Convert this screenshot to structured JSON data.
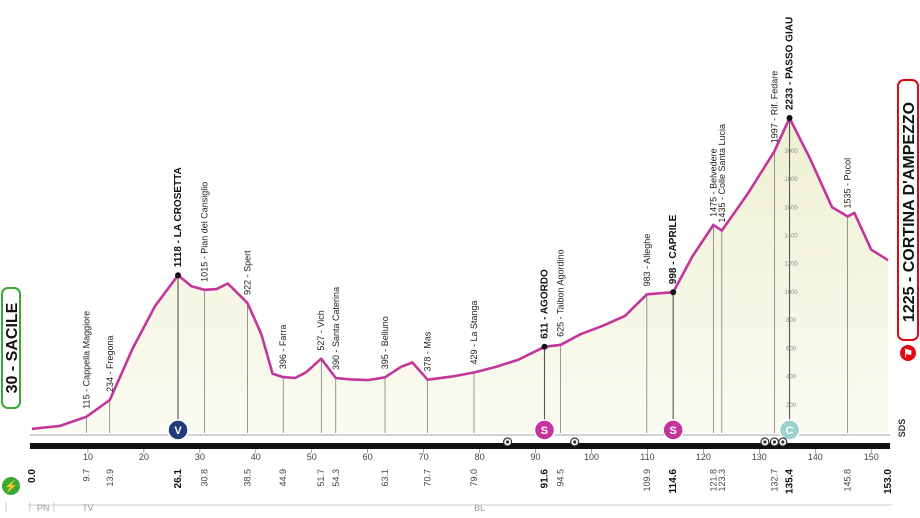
{
  "chart_data": {
    "type": "area",
    "x_range": [
      0,
      153.0
    ],
    "y_range": [
      0,
      2300
    ],
    "profile": [
      [
        0,
        30
      ],
      [
        5,
        50
      ],
      [
        9.7,
        115
      ],
      [
        13.9,
        234
      ],
      [
        18,
        600
      ],
      [
        22,
        900
      ],
      [
        26.1,
        1118
      ],
      [
        28.5,
        1040
      ],
      [
        30.8,
        1015
      ],
      [
        33,
        1020
      ],
      [
        35,
        1060
      ],
      [
        38.5,
        922
      ],
      [
        41,
        700
      ],
      [
        43,
        420
      ],
      [
        44.9,
        396
      ],
      [
        47,
        390
      ],
      [
        49,
        430
      ],
      [
        51.7,
        527
      ],
      [
        54.3,
        390
      ],
      [
        57,
        380
      ],
      [
        60,
        375
      ],
      [
        63.1,
        395
      ],
      [
        66,
        470
      ],
      [
        68,
        500
      ],
      [
        70.7,
        378
      ],
      [
        75,
        400
      ],
      [
        79,
        429
      ],
      [
        83,
        470
      ],
      [
        87,
        520
      ],
      [
        91.6,
        611
      ],
      [
        94.5,
        625
      ],
      [
        98,
        700
      ],
      [
        102,
        760
      ],
      [
        106,
        830
      ],
      [
        109.9,
        983
      ],
      [
        114.6,
        998
      ],
      [
        118,
        1250
      ],
      [
        121.8,
        1475
      ],
      [
        123.3,
        1435
      ],
      [
        128,
        1700
      ],
      [
        132.7,
        1997
      ],
      [
        135.4,
        2233
      ],
      [
        139,
        1950
      ],
      [
        143,
        1600
      ],
      [
        145.8,
        1535
      ],
      [
        147,
        1560
      ],
      [
        150,
        1300
      ],
      [
        153,
        1225
      ]
    ],
    "places": [
      {
        "km": 9.7,
        "name": "115 - Cappella Maggiore",
        "bold": false
      },
      {
        "km": 13.9,
        "name": "234 - Fregona",
        "bold": false
      },
      {
        "km": 26.1,
        "name": "1118 - LA CROSETTA",
        "bold": true
      },
      {
        "km": 30.8,
        "name": "1015 - Pian del Cansiglio",
        "bold": false
      },
      {
        "km": 38.5,
        "name": "922 - Spert",
        "bold": false
      },
      {
        "km": 44.9,
        "name": "396 - Farra",
        "bold": false
      },
      {
        "km": 51.7,
        "name": "527 - Vich",
        "bold": false
      },
      {
        "km": 54.3,
        "name": "390 - Santa Caterina",
        "bold": false
      },
      {
        "km": 63.1,
        "name": "395 - Belluno",
        "bold": false
      },
      {
        "km": 70.7,
        "name": "378 - Mas",
        "bold": false
      },
      {
        "km": 79.0,
        "name": "429 - La Stanga",
        "bold": false
      },
      {
        "km": 91.6,
        "name": "611 - AGORDO",
        "bold": true
      },
      {
        "km": 94.5,
        "name": "625 - Taibon Agordino",
        "bold": false
      },
      {
        "km": 109.9,
        "name": "983 - Alleghe",
        "bold": false
      },
      {
        "km": 114.6,
        "name": "998 - CAPRILE",
        "bold": true
      },
      {
        "km": 121.8,
        "name": "1475 - Belvedere",
        "bold": false
      },
      {
        "km": 123.3,
        "name": "1435 - Colle Santa Lucia",
        "bold": false
      },
      {
        "km": 132.7,
        "name": "1997 - Rif. Fedare",
        "bold": false
      },
      {
        "km": 135.4,
        "name": "2233 - PASSO GIAU",
        "bold": true
      },
      {
        "km": 145.8,
        "name": "1535 - Pocol",
        "bold": false
      }
    ],
    "start": {
      "label": "30 - SACILE"
    },
    "finish": {
      "label": "1225 - CORTINA D'AMPEZZO"
    },
    "km_ticks": [
      {
        "km": 0.0,
        "label": "0.0",
        "bold": true
      },
      {
        "km": 9.7,
        "label": "9.7",
        "bold": false
      },
      {
        "km": 13.9,
        "label": "13.9",
        "bold": false
      },
      {
        "km": 26.1,
        "label": "26.1",
        "bold": true
      },
      {
        "km": 30.8,
        "label": "30.8",
        "bold": false
      },
      {
        "km": 38.5,
        "label": "38.5",
        "bold": false
      },
      {
        "km": 44.9,
        "label": "44.9",
        "bold": false
      },
      {
        "km": 51.7,
        "label": "51.7",
        "bold": false
      },
      {
        "km": 54.3,
        "label": "54.3",
        "bold": false
      },
      {
        "km": 63.1,
        "label": "63.1",
        "bold": false
      },
      {
        "km": 70.7,
        "label": "70.7",
        "bold": false
      },
      {
        "km": 79.0,
        "label": "79.0",
        "bold": false
      },
      {
        "km": 91.6,
        "label": "91.6",
        "bold": true
      },
      {
        "km": 94.5,
        "label": "94.5",
        "bold": false
      },
      {
        "km": 109.9,
        "label": "109.9",
        "bold": false
      },
      {
        "km": 114.6,
        "label": "114.6",
        "bold": true
      },
      {
        "km": 121.8,
        "label": "121.8",
        "bold": false
      },
      {
        "km": 123.3,
        "label": "123.3",
        "bold": false
      },
      {
        "km": 132.7,
        "label": "132.7",
        "bold": false
      },
      {
        "km": 135.4,
        "label": "135.4",
        "bold": true
      },
      {
        "km": 145.8,
        "label": "145.8",
        "bold": false
      },
      {
        "km": 153.0,
        "label": "153.0",
        "bold": true
      }
    ],
    "scale_labels": [
      "10",
      "20",
      "30",
      "40",
      "50",
      "60",
      "70",
      "80",
      "90",
      "100",
      "110",
      "120",
      "130",
      "140",
      "150"
    ],
    "altitude_labels": [
      "200",
      "400",
      "600",
      "800",
      "1000",
      "1200",
      "1400",
      "1600",
      "1800",
      "2000"
    ],
    "markers": [
      {
        "km": 26.1,
        "symbol": "V",
        "color": "#1f3b7a"
      },
      {
        "km": 91.6,
        "symbol": "S",
        "color": "#c4359b"
      },
      {
        "km": 114.6,
        "symbol": "S",
        "color": "#c4359b"
      },
      {
        "km": 135.4,
        "symbol": "C",
        "color": "#9dd0cf"
      }
    ],
    "small_markers": [
      {
        "km": 85
      },
      {
        "km": 97
      },
      {
        "km": 131
      },
      {
        "km": 132.7
      },
      {
        "km": 134.2
      }
    ],
    "regions": [
      {
        "km": 2,
        "label": "PN"
      },
      {
        "km": 10,
        "label": "TV"
      },
      {
        "km": 80,
        "label": "BL"
      }
    ],
    "side_label": "SDS",
    "colors": {
      "profile": "#c4359b",
      "fill": "#f6f7e6",
      "start": "#39a935",
      "finish": "#e30613"
    }
  }
}
